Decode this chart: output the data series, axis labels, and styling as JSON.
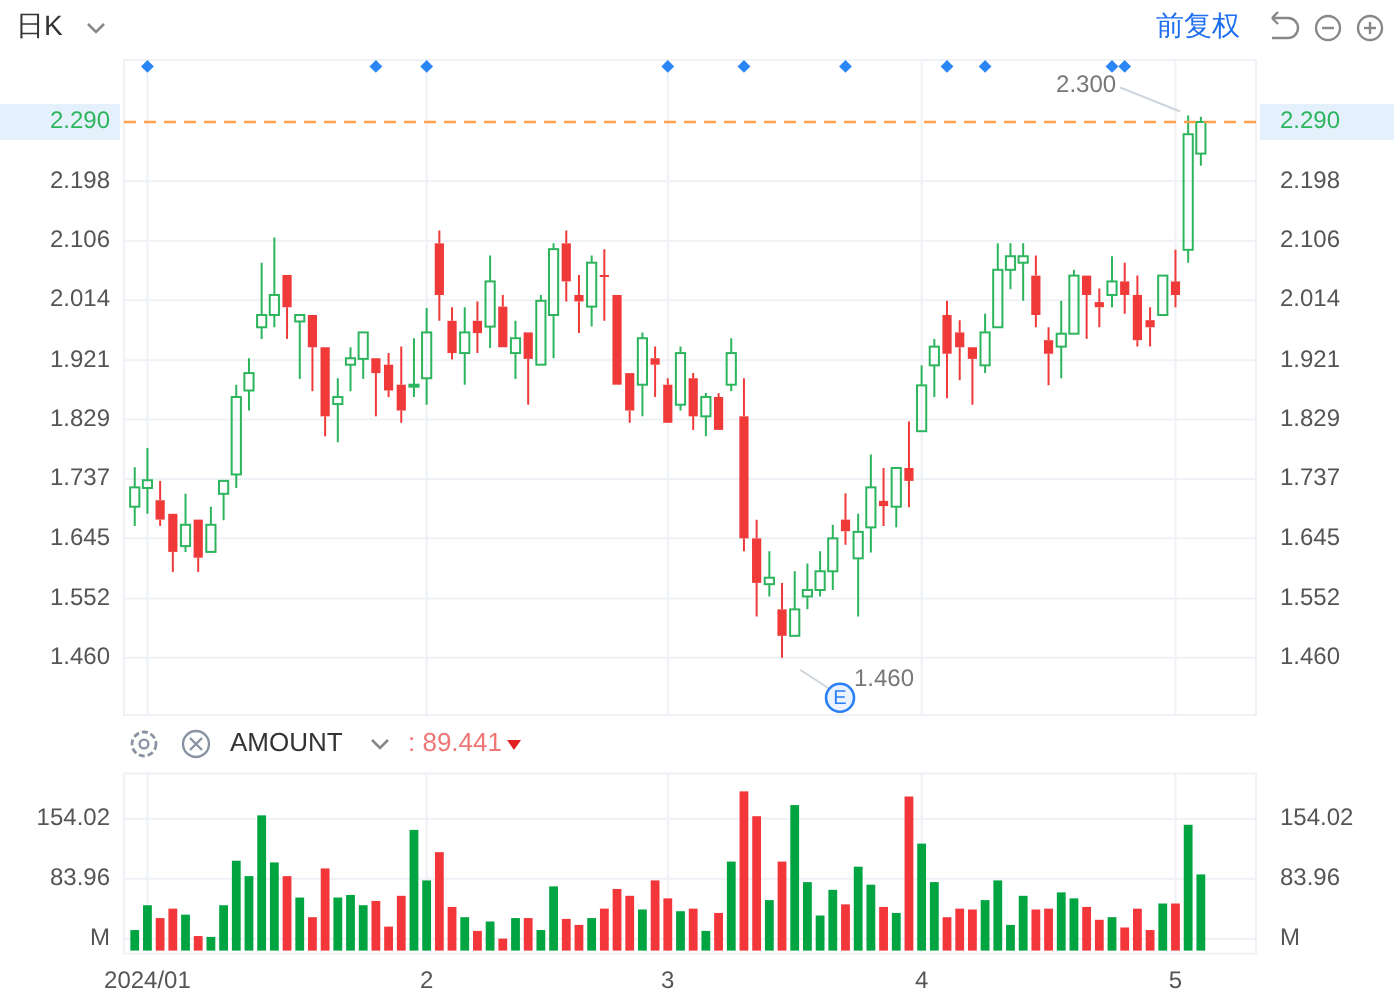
{
  "chart_data": [
    {
      "type": "candlestick",
      "title": "日K",
      "tick_labels": "y",
      "grid": true,
      "annotations": [
        "前复权",
        {
          "text": "2.300",
          "y": 2.3
        },
        "1.460",
        "E"
      ],
      "categories": [
        null,
        "2024/01",
        null,
        null,
        null,
        null,
        null,
        null,
        null,
        null,
        null,
        null,
        null,
        null,
        null,
        null,
        null,
        null,
        null,
        null,
        null,
        null,
        null,
        "2",
        null,
        null,
        null,
        null,
        null,
        null,
        null,
        null,
        null,
        null,
        null,
        null,
        null,
        null,
        null,
        null,
        null,
        null,
        "3",
        null,
        null,
        null,
        null,
        null,
        null,
        null,
        null,
        null,
        null,
        null,
        null,
        null,
        null,
        null,
        null,
        null,
        null,
        null,
        "4",
        null,
        null,
        null,
        null,
        null,
        null,
        null,
        null,
        null,
        null,
        null,
        null,
        null,
        null,
        null,
        null,
        null,
        null,
        null,
        "5",
        null,
        null
      ],
      "ohlc": [
        [
          1.694,
          1.755,
          1.664,
          1.724
        ],
        [
          1.723,
          1.785,
          1.683,
          1.735
        ],
        [
          1.704,
          1.734,
          1.664,
          1.674
        ],
        [
          1.683,
          1.683,
          1.593,
          1.624
        ],
        [
          1.633,
          1.714,
          1.624,
          1.666
        ],
        [
          1.674,
          1.674,
          1.593,
          1.615
        ],
        [
          1.624,
          1.694,
          1.624,
          1.666
        ],
        [
          1.714,
          1.734,
          1.673,
          1.734
        ],
        [
          1.744,
          1.883,
          1.723,
          1.864
        ],
        [
          1.874,
          1.924,
          1.843,
          1.901
        ],
        [
          1.972,
          2.072,
          1.954,
          1.991
        ],
        [
          1.991,
          2.111,
          1.972,
          2.022
        ],
        [
          2.053,
          2.053,
          1.954,
          2.003
        ],
        [
          1.981,
          1.991,
          1.892,
          1.991
        ],
        [
          1.991,
          1.991,
          1.873,
          1.941
        ],
        [
          1.941,
          1.941,
          1.803,
          1.834
        ],
        [
          1.853,
          1.893,
          1.794,
          1.864
        ],
        [
          1.914,
          1.941,
          1.873,
          1.924
        ],
        [
          1.923,
          1.964,
          1.892,
          1.964
        ],
        [
          1.924,
          1.924,
          1.834,
          1.901
        ],
        [
          1.914,
          1.932,
          1.864,
          1.874
        ],
        [
          1.883,
          1.942,
          1.824,
          1.843
        ],
        [
          1.881,
          1.955,
          1.864,
          1.883
        ],
        [
          1.893,
          2.002,
          1.852,
          1.964
        ],
        [
          2.102,
          2.122,
          1.982,
          2.022
        ],
        [
          1.982,
          2.003,
          1.922,
          1.932
        ],
        [
          1.932,
          2.003,
          1.883,
          1.964
        ],
        [
          1.982,
          2.012,
          1.932,
          1.963
        ],
        [
          1.973,
          2.083,
          1.94,
          2.043
        ],
        [
          2.004,
          2.022,
          1.941,
          1.941
        ],
        [
          1.932,
          1.982,
          1.892,
          1.955
        ],
        [
          1.964,
          1.964,
          1.852,
          1.923
        ],
        [
          1.914,
          2.022,
          1.914,
          2.013
        ],
        [
          1.991,
          2.102,
          1.924,
          2.093
        ],
        [
          2.102,
          2.122,
          2.012,
          2.043
        ],
        [
          2.022,
          2.053,
          1.963,
          2.012
        ],
        [
          2.004,
          2.083,
          1.973,
          2.072
        ],
        [
          2.053,
          2.093,
          1.982,
          2.051
        ],
        [
          2.022,
          2.022,
          1.883,
          1.883
        ],
        [
          1.901,
          1.901,
          1.824,
          1.843
        ],
        [
          1.883,
          1.964,
          1.834,
          1.955
        ],
        [
          1.924,
          1.942,
          1.864,
          1.914
        ],
        [
          1.883,
          1.893,
          1.824,
          1.824
        ],
        [
          1.852,
          1.942,
          1.843,
          1.932
        ],
        [
          1.893,
          1.901,
          1.813,
          1.834
        ],
        [
          1.834,
          1.87,
          1.803,
          1.864
        ],
        [
          1.864,
          1.87,
          1.813,
          1.813
        ],
        [
          1.883,
          1.955,
          1.873,
          1.932
        ],
        [
          1.834,
          1.893,
          1.625,
          1.645
        ],
        [
          1.645,
          1.674,
          1.524,
          1.576
        ],
        [
          1.574,
          1.625,
          1.555,
          1.584
        ],
        [
          1.535,
          1.576,
          1.46,
          1.494
        ],
        [
          1.494,
          1.594,
          1.494,
          1.535
        ],
        [
          1.555,
          1.606,
          1.535,
          1.565
        ],
        [
          1.565,
          1.625,
          1.555,
          1.594
        ],
        [
          1.594,
          1.666,
          1.565,
          1.645
        ],
        [
          1.674,
          1.715,
          1.635,
          1.656
        ],
        [
          1.614,
          1.683,
          1.524,
          1.655
        ],
        [
          1.662,
          1.775,
          1.623,
          1.724
        ],
        [
          1.703,
          1.754,
          1.664,
          1.695
        ],
        [
          1.694,
          1.754,
          1.662,
          1.754
        ],
        [
          1.754,
          1.826,
          1.693,
          1.734
        ],
        [
          1.811,
          1.913,
          1.811,
          1.882
        ],
        [
          1.913,
          1.954,
          1.864,
          1.942
        ],
        [
          1.991,
          2.013,
          1.862,
          1.931
        ],
        [
          1.964,
          1.983,
          1.89,
          1.941
        ],
        [
          1.941,
          1.941,
          1.852,
          1.923
        ],
        [
          1.913,
          1.993,
          1.901,
          1.964
        ],
        [
          1.972,
          2.102,
          1.972,
          2.061
        ],
        [
          2.061,
          2.102,
          2.031,
          2.082
        ],
        [
          2.072,
          2.102,
          2.013,
          2.082
        ],
        [
          2.052,
          2.083,
          1.972,
          1.991
        ],
        [
          1.952,
          1.972,
          1.882,
          1.931
        ],
        [
          1.942,
          2.013,
          1.893,
          1.962
        ],
        [
          1.962,
          2.061,
          1.962,
          2.052
        ],
        [
          2.052,
          2.052,
          1.954,
          2.022
        ],
        [
          2.011,
          2.032,
          1.972,
          2.003
        ],
        [
          2.022,
          2.082,
          2.003,
          2.043
        ],
        [
          2.043,
          2.072,
          1.993,
          2.022
        ],
        [
          2.022,
          2.052,
          1.942,
          1.952
        ],
        [
          1.983,
          2.003,
          1.942,
          1.972
        ],
        [
          1.991,
          2.052,
          1.991,
          2.052
        ],
        [
          2.043,
          2.092,
          2.003,
          2.022
        ],
        [
          2.092,
          2.3,
          2.072,
          2.271
        ],
        [
          2.241,
          2.298,
          2.222,
          2.29
        ]
      ],
      "colors": [
        "#2db55d",
        "#2db55d",
        "#f03a3a",
        "#f03a3a",
        "#2db55d",
        "#f03a3a",
        "#2db55d",
        "#2db55d",
        "#2db55d",
        "#2db55d",
        "#2db55d",
        "#2db55d",
        "#f03a3a",
        "#2db55d",
        "#f03a3a",
        "#f03a3a",
        "#2db55d",
        "#2db55d",
        "#2db55d",
        "#f03a3a",
        "#f03a3a",
        "#f03a3a",
        "#2db55d",
        "#2db55d",
        "#f03a3a",
        "#f03a3a",
        "#2db55d",
        "#f03a3a",
        "#2db55d",
        "#f03a3a",
        "#2db55d",
        "#f03a3a",
        "#2db55d",
        "#2db55d",
        "#f03a3a",
        "#f03a3a",
        "#2db55d",
        "#f03a3a",
        "#f03a3a",
        "#f03a3a",
        "#2db55d",
        "#f03a3a",
        "#f03a3a",
        "#2db55d",
        "#f03a3a",
        "#2db55d",
        "#f03a3a",
        "#2db55d",
        "#f03a3a",
        "#f03a3a",
        "#2db55d",
        "#f03a3a",
        "#2db55d",
        "#2db55d",
        "#2db55d",
        "#2db55d",
        "#f03a3a",
        "#2db55d",
        "#2db55d",
        "#f03a3a",
        "#2db55d",
        "#f03a3a",
        "#2db55d",
        "#2db55d",
        "#f03a3a",
        "#f03a3a",
        "#f03a3a",
        "#2db55d",
        "#2db55d",
        "#2db55d",
        "#2db55d",
        "#f03a3a",
        "#f03a3a",
        "#2db55d",
        "#2db55d",
        "#f03a3a",
        "#f03a3a",
        "#2db55d",
        "#f03a3a",
        "#f03a3a",
        "#f03a3a",
        "#2db55d",
        "#f03a3a",
        "#2db55d",
        "#2db55d"
      ],
      "series": [
        {
          "type": "scatter",
          "marker": "diamond",
          "color": "#2a86f5",
          "values": [
            null,
            2.376,
            null,
            null,
            null,
            null,
            null,
            null,
            null,
            null,
            null,
            null,
            null,
            null,
            null,
            null,
            null,
            null,
            null,
            2.376,
            null,
            null,
            null,
            2.376,
            null,
            null,
            null,
            null,
            null,
            null,
            null,
            null,
            null,
            null,
            null,
            null,
            null,
            null,
            null,
            null,
            null,
            null,
            2.376,
            null,
            null,
            null,
            null,
            null,
            2.376,
            null,
            null,
            null,
            null,
            null,
            null,
            null,
            2.376,
            null,
            null,
            null,
            null,
            null,
            null,
            null,
            2.376,
            null,
            null,
            2.376,
            null,
            null,
            null,
            null,
            null,
            null,
            null,
            null,
            null,
            2.376,
            2.376,
            null,
            null,
            null,
            null,
            null,
            null
          ]
        }
      ],
      "ref_lines": [
        {
          "axis": "y",
          "value": 2.29,
          "label": "2.290",
          "color": "#ffa04d",
          "line_style": "dashed"
        }
      ],
      "ylim": [
        1.376,
        2.386
      ],
      "yticks": [
        {
          "value": 1.46,
          "label": "1.460"
        },
        1.552,
        1.645,
        1.737,
        1.829,
        1.921,
        2.014,
        2.106,
        2.198
      ],
      "y2lim": [
        1.376,
        2.386
      ],
      "y2ticks": [
        {
          "value": 1.46,
          "label": "1.460"
        },
        1.552,
        1.645,
        1.737,
        1.829,
        1.921,
        2.014,
        2.106,
        2.198
      ]
    },
    {
      "type": "bar",
      "title": "AMOUNT",
      "subtitle": ": 89.441",
      "grid": true,
      "categories": [
        null,
        "2024/01",
        null,
        null,
        null,
        null,
        null,
        null,
        null,
        null,
        null,
        null,
        null,
        null,
        null,
        null,
        null,
        null,
        null,
        null,
        null,
        null,
        null,
        "2",
        null,
        null,
        null,
        null,
        null,
        null,
        null,
        null,
        null,
        null,
        null,
        null,
        null,
        null,
        null,
        null,
        null,
        null,
        "3",
        null,
        null,
        null,
        null,
        null,
        null,
        null,
        null,
        null,
        null,
        null,
        null,
        null,
        null,
        null,
        null,
        null,
        null,
        null,
        "4",
        null,
        null,
        null,
        null,
        null,
        null,
        null,
        null,
        null,
        null,
        null,
        null,
        null,
        null,
        null,
        null,
        null,
        null,
        null,
        "5",
        null,
        null
      ],
      "values": [
        24,
        53,
        38,
        49,
        42,
        17,
        16,
        53,
        105,
        87,
        158,
        103,
        87,
        62,
        39,
        96,
        62,
        65,
        53,
        58,
        28,
        64,
        141,
        82,
        115,
        51,
        39,
        23,
        34,
        14,
        38,
        38,
        24,
        75,
        37,
        30,
        38,
        49,
        72,
        64,
        48,
        82,
        61,
        46,
        49,
        23,
        44,
        104,
        186,
        157,
        59,
        104,
        170,
        80,
        41,
        71,
        54,
        98,
        77,
        51,
        44,
        180,
        125,
        80,
        39,
        49,
        48,
        59,
        82,
        30,
        64,
        48,
        49,
        68,
        61,
        51,
        36,
        39,
        27,
        49,
        24,
        55,
        55,
        147,
        89
      ],
      "colors": [
        "#00a440",
        "#00a440",
        "#f2363a",
        "#f2363a",
        "#00a440",
        "#f2363a",
        "#00a440",
        "#00a440",
        "#00a440",
        "#00a440",
        "#00a440",
        "#00a440",
        "#f2363a",
        "#00a440",
        "#f2363a",
        "#f2363a",
        "#00a440",
        "#00a440",
        "#00a440",
        "#f2363a",
        "#f2363a",
        "#f2363a",
        "#00a440",
        "#00a440",
        "#f2363a",
        "#f2363a",
        "#00a440",
        "#f2363a",
        "#00a440",
        "#f2363a",
        "#00a440",
        "#f2363a",
        "#00a440",
        "#00a440",
        "#f2363a",
        "#f2363a",
        "#00a440",
        "#f2363a",
        "#f2363a",
        "#f2363a",
        "#00a440",
        "#f2363a",
        "#f2363a",
        "#00a440",
        "#f2363a",
        "#00a440",
        "#f2363a",
        "#00a440",
        "#f2363a",
        "#f2363a",
        "#00a440",
        "#f2363a",
        "#00a440",
        "#00a440",
        "#00a440",
        "#00a440",
        "#f2363a",
        "#00a440",
        "#00a440",
        "#f2363a",
        "#00a440",
        "#f2363a",
        "#00a440",
        "#00a440",
        "#f2363a",
        "#f2363a",
        "#f2363a",
        "#00a440",
        "#00a440",
        "#00a440",
        "#00a440",
        "#f2363a",
        "#f2363a",
        "#00a440",
        "#00a440",
        "#f2363a",
        "#f2363a",
        "#00a440",
        "#f2363a",
        "#f2363a",
        "#f2363a",
        "#00a440",
        "#f2363a",
        "#00a440",
        "#00a440"
      ],
      "ylim": [
        0,
        207
      ],
      "yticks": [
        {
          "value": 13.9,
          "label": "M"
        },
        83.96,
        154.02
      ],
      "y2lim": [
        0,
        207
      ],
      "y2ticks": [
        {
          "value": 13.9,
          "label": "M"
        },
        83.96,
        154.02
      ]
    }
  ]
}
